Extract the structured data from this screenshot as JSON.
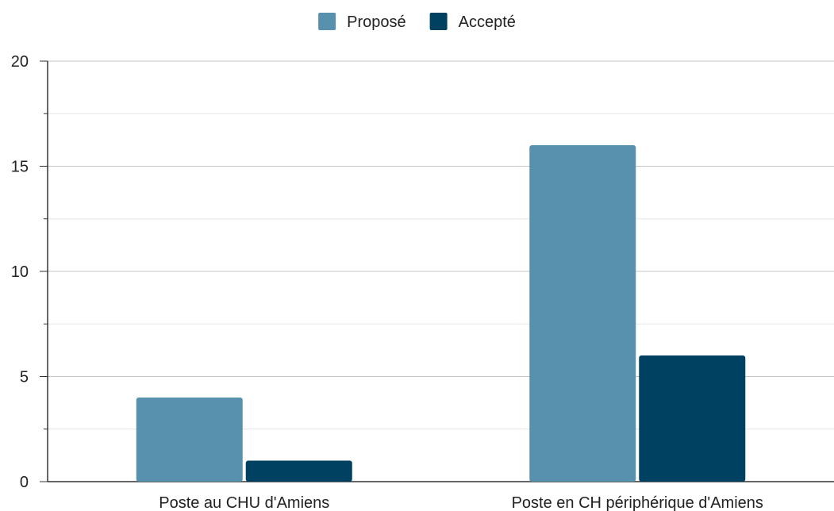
{
  "chart_data": {
    "type": "bar",
    "categories": [
      "Poste au CHU d'Amiens",
      "Poste en CH périphérique d'Amiens"
    ],
    "series": [
      {
        "name": "Proposé",
        "values": [
          4,
          16
        ],
        "color": "#5891ad"
      },
      {
        "name": "Accepté",
        "values": [
          1,
          6
        ],
        "color": "#004060"
      }
    ],
    "yticks": [
      "0",
      "5",
      "10",
      "15",
      "20"
    ],
    "ylim": [
      0,
      20
    ],
    "grid": true,
    "legend_position": "top-center",
    "title": "",
    "xlabel": "",
    "ylabel": ""
  }
}
